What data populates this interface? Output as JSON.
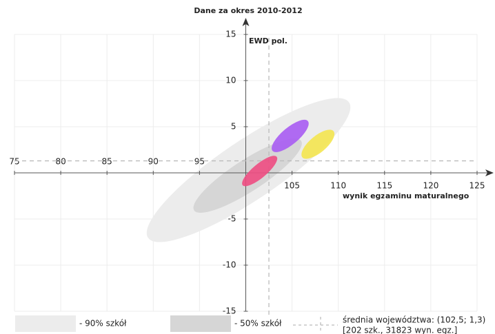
{
  "chart_data": {
    "type": "ellipse",
    "title": "Dane za okres 2010-2012",
    "y_label": "EWD pol.",
    "x_label": "wynik egzaminu maturalnego",
    "xlim": [
      75,
      125
    ],
    "xticks": [
      75,
      80,
      85,
      90,
      95,
      105,
      110,
      115,
      120,
      125
    ],
    "ylim": [
      -15,
      15
    ],
    "yticks": [
      -15,
      -10,
      -5,
      5,
      10,
      15
    ],
    "grid": true,
    "mean": {
      "x": 102.5,
      "y": 1.3,
      "label": "średnia województwa: (102,5; 1,3)",
      "note": "[202 szk., 31823 wyn. egz.]"
    },
    "regions": [
      {
        "name": "- 90% szkół",
        "color": "#ececec",
        "cx": 100.3,
        "cy": 0.3,
        "rx": 13.1,
        "ry": 3.2,
        "angle": 34
      },
      {
        "name": "- 50% szkół",
        "color": "#d6d6d6",
        "cx": 100.2,
        "cy": -0.3,
        "rx": 6.9,
        "ry": 1.7,
        "angle": 33
      }
    ],
    "ellipses": [
      {
        "color": "#ee4d82",
        "cx": 101.5,
        "cy": 0.2,
        "rx": 2.4,
        "ry": 0.75,
        "angle": 40
      },
      {
        "color": "#a95cf3",
        "cx": 104.8,
        "cy": 4.0,
        "rx": 2.5,
        "ry": 0.9,
        "angle": 40
      },
      {
        "color": "#f4e550",
        "cx": 107.8,
        "cy": 3.1,
        "rx": 2.2,
        "ry": 0.9,
        "angle": 40
      }
    ]
  }
}
